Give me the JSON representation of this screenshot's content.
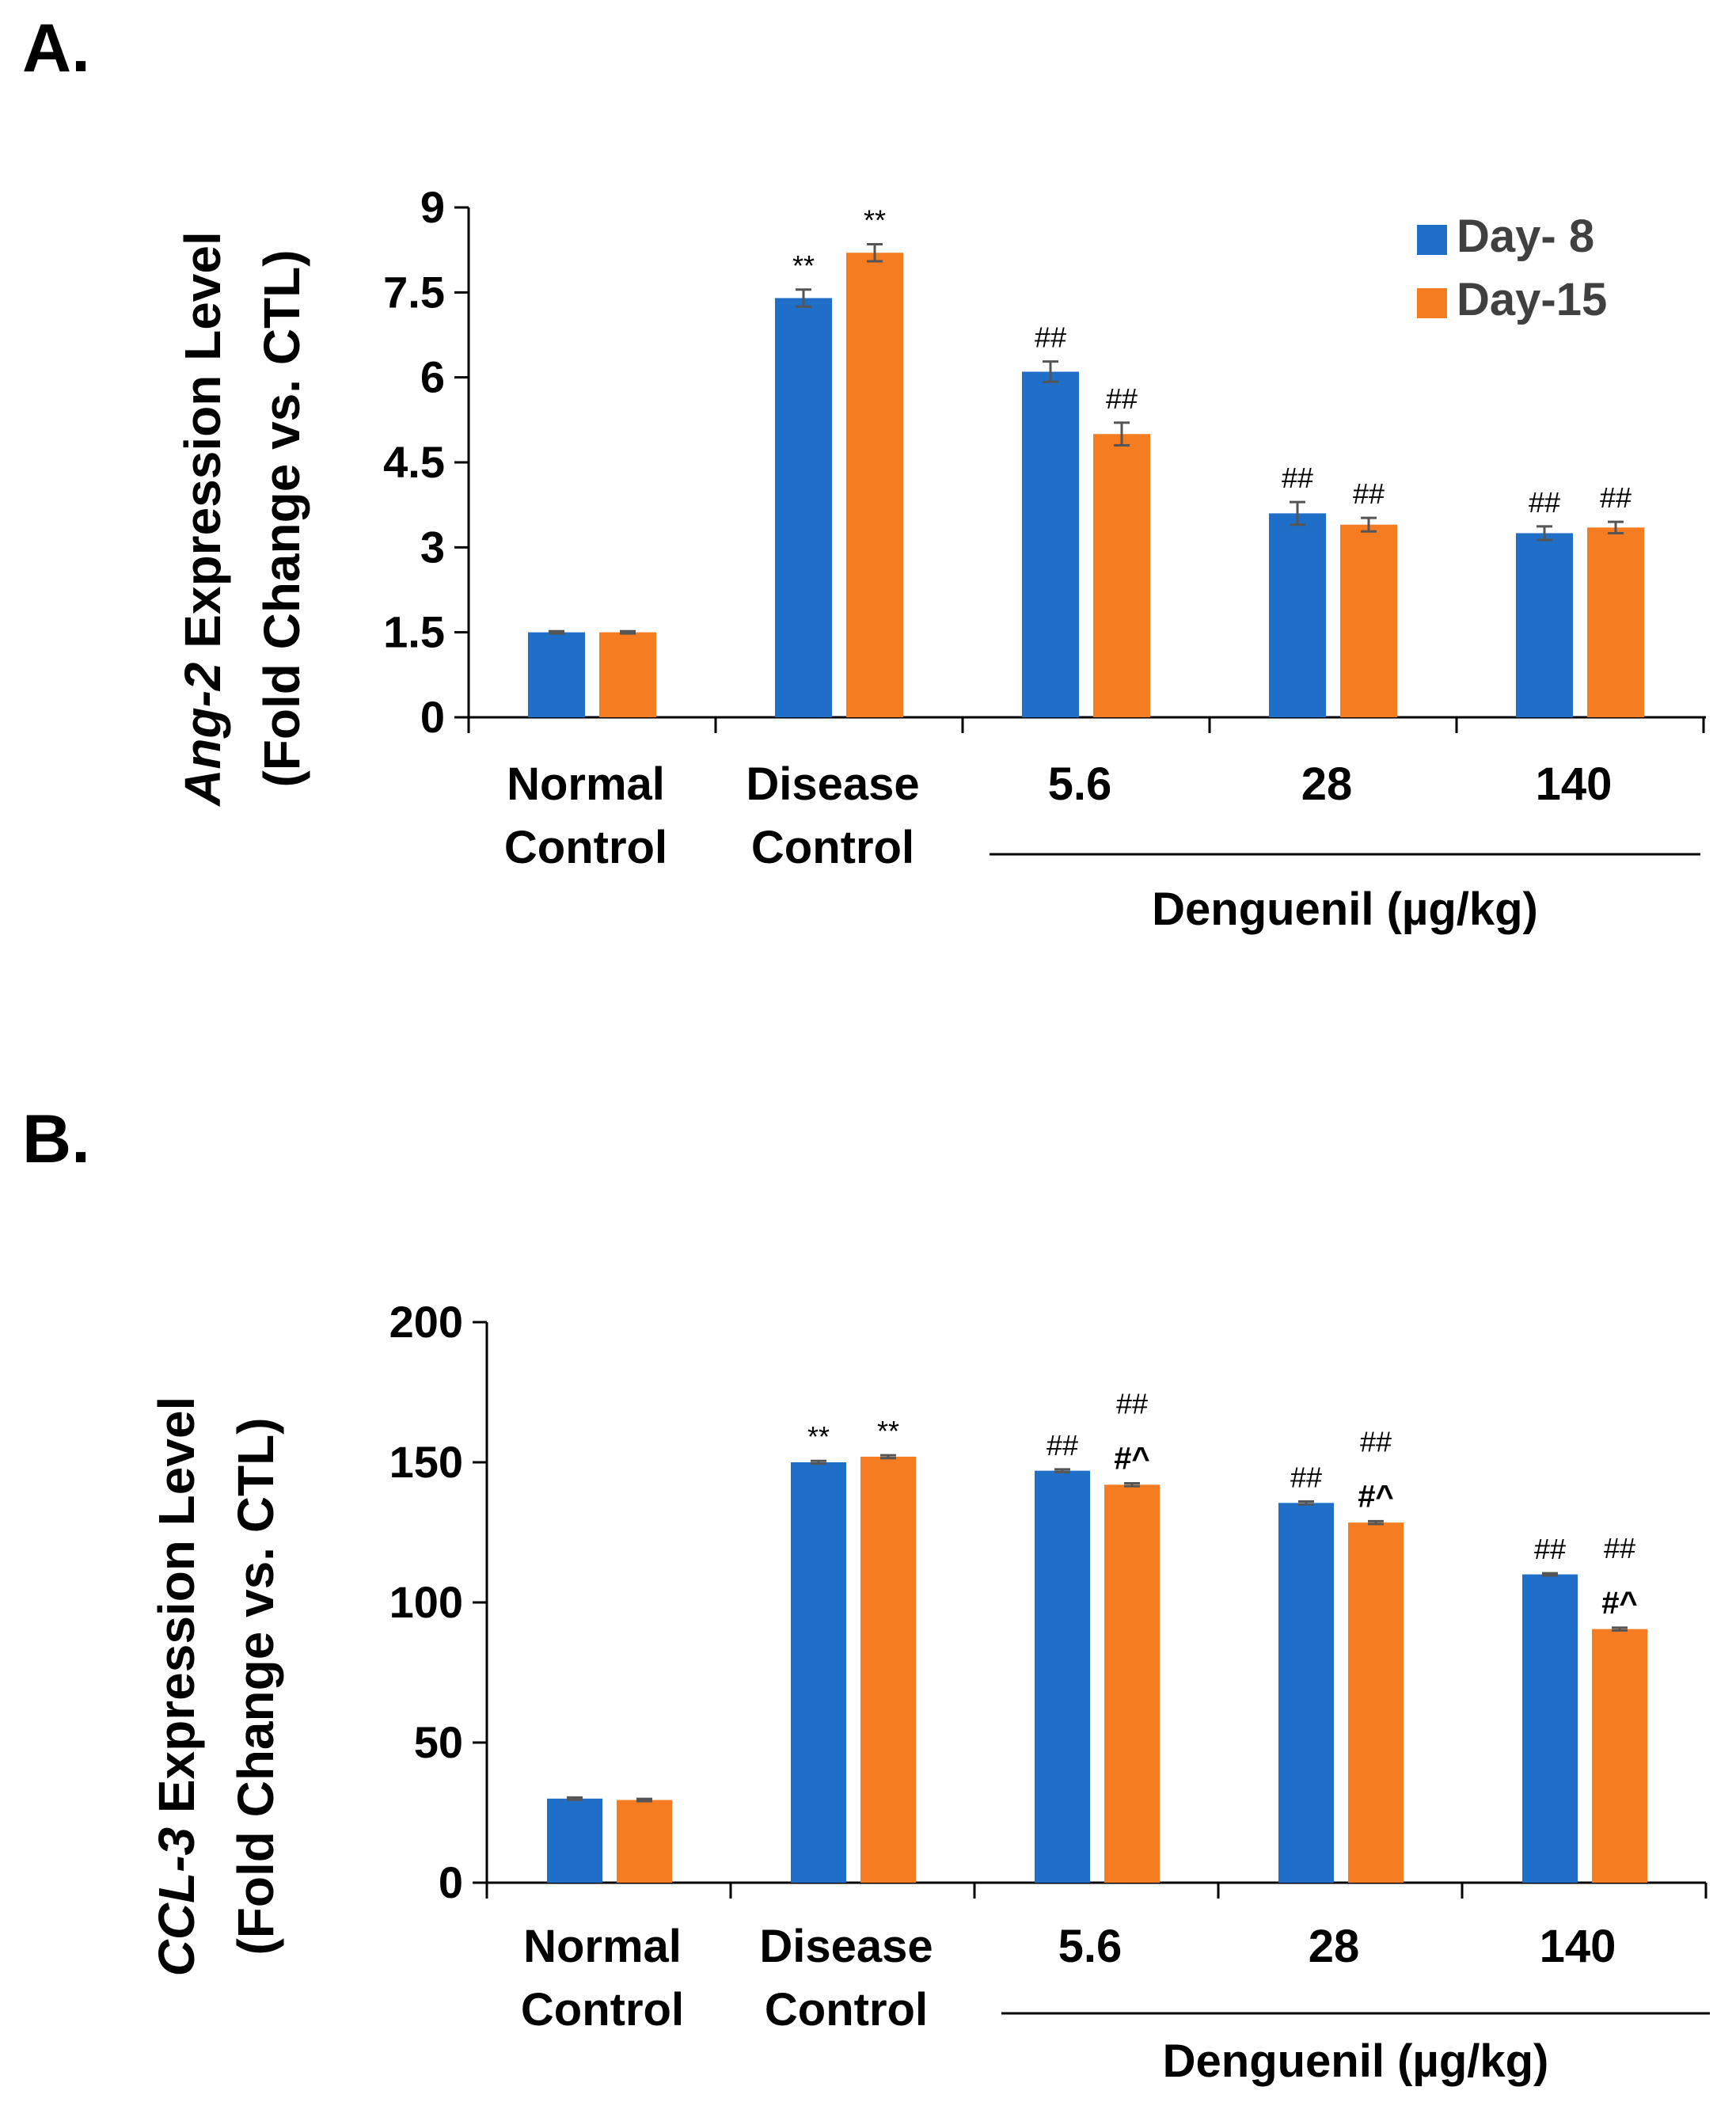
{
  "chart_data": [
    {
      "panel": "A.",
      "type": "bar",
      "ylabel_italic": "Ang-2",
      "ylabel_rest": " Expression Level",
      "ylabel_line2": "(Fold Change vs. CTL)",
      "ylim": [
        0,
        9
      ],
      "yticks": [
        0,
        1.5,
        3,
        4.5,
        6,
        7.5,
        9
      ],
      "ytick_labels": [
        "0",
        "1.5",
        "3",
        "4.5",
        "6",
        "7.5",
        "9"
      ],
      "categories": [
        [
          "Normal",
          "Control"
        ],
        [
          "Disease",
          "Control"
        ],
        [
          "5.6"
        ],
        [
          "28"
        ],
        [
          "140"
        ]
      ],
      "group_label": "Denguenil (µg/kg)",
      "legend": [
        "Day- 8",
        "Day-15"
      ],
      "series": [
        {
          "name": "Day- 8",
          "values": [
            1.5,
            7.4,
            6.1,
            3.6,
            3.25
          ],
          "errors": [
            0.02,
            0.15,
            0.18,
            0.2,
            0.12
          ],
          "annotations": [
            [],
            [
              "**"
            ],
            [
              "##"
            ],
            [
              "##"
            ],
            [
              "##"
            ]
          ]
        },
        {
          "name": "Day-15",
          "values": [
            1.5,
            8.2,
            5.0,
            3.4,
            3.35
          ],
          "errors": [
            0.02,
            0.15,
            0.2,
            0.12,
            0.1
          ],
          "annotations": [
            [],
            [
              "**"
            ],
            [
              "##"
            ],
            [
              "##"
            ],
            [
              "##"
            ]
          ]
        }
      ]
    },
    {
      "panel": "B.",
      "type": "bar",
      "ylabel_italic": "CCL-3",
      "ylabel_rest": " Expression Level",
      "ylabel_line2": "(Fold Change vs. CTL)",
      "ylim": [
        0,
        200
      ],
      "yticks": [
        0,
        50,
        100,
        150,
        200
      ],
      "ytick_labels": [
        "0",
        "50",
        "100",
        "150",
        "200"
      ],
      "categories": [
        [
          "Normal",
          "Control"
        ],
        [
          "Disease",
          "Control"
        ],
        [
          "5.6"
        ],
        [
          "28"
        ],
        [
          "140"
        ]
      ],
      "group_label": "Denguenil (µg/kg)",
      "legend": [],
      "series": [
        {
          "name": "Day- 8",
          "values": [
            30,
            150,
            147,
            135.5,
            110
          ],
          "errors": [
            0.4,
            0.5,
            0.5,
            0.5,
            0.4
          ],
          "annotations": [
            [],
            [
              "**"
            ],
            [
              "##"
            ],
            [
              "##"
            ],
            [
              "##"
            ]
          ]
        },
        {
          "name": "Day-15",
          "values": [
            29.5,
            152,
            142,
            128.5,
            90.5
          ],
          "errors": [
            0.4,
            0.5,
            0.5,
            0.5,
            0.5
          ],
          "annotations": [
            [],
            [
              "**"
            ],
            [
              "##",
              "#^"
            ],
            [
              "##",
              "#^"
            ],
            [
              "##",
              "#^"
            ]
          ]
        }
      ]
    }
  ],
  "colors": {
    "day8": "#1f6ec8",
    "day15": "#f57c20",
    "axis": "#000000",
    "error": "#555555"
  }
}
